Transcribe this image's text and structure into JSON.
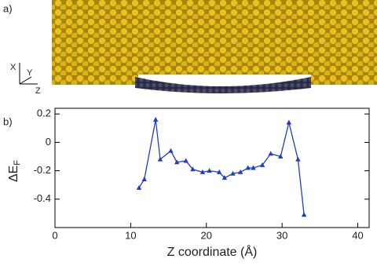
{
  "panel_a": {
    "label": "a)",
    "axes": [
      "X",
      "Y",
      "Z"
    ]
  },
  "chart_data": {
    "type": "line",
    "panel_label": "b)",
    "xlabel": "Z coordinate (Å)",
    "ylabel": "ΔE",
    "ylabel_subscript": "F",
    "x": [
      11.1,
      11.8,
      13.3,
      13.9,
      15.3,
      16.1,
      17.3,
      18.2,
      19.5,
      20.4,
      21.7,
      22.4,
      23.5,
      24.5,
      25.5,
      26.2,
      27.4,
      28.5,
      29.8,
      30.9,
      32.1,
      32.9
    ],
    "series": [
      {
        "color": "#1f3fbf",
        "values": [
          -0.32,
          -0.26,
          0.16,
          -0.12,
          -0.06,
          -0.14,
          -0.13,
          -0.19,
          -0.21,
          -0.2,
          -0.21,
          -0.25,
          -0.22,
          -0.21,
          -0.18,
          -0.18,
          -0.16,
          -0.08,
          -0.1,
          0.14,
          -0.12,
          -0.51
        ]
      }
    ],
    "xlim": [
      0,
      41.5
    ],
    "ylim": [
      -0.6,
      0.24
    ],
    "xticks": [
      0,
      10,
      20,
      30,
      40
    ],
    "yticks": [
      0.2,
      0,
      -0.2,
      -0.4
    ]
  }
}
